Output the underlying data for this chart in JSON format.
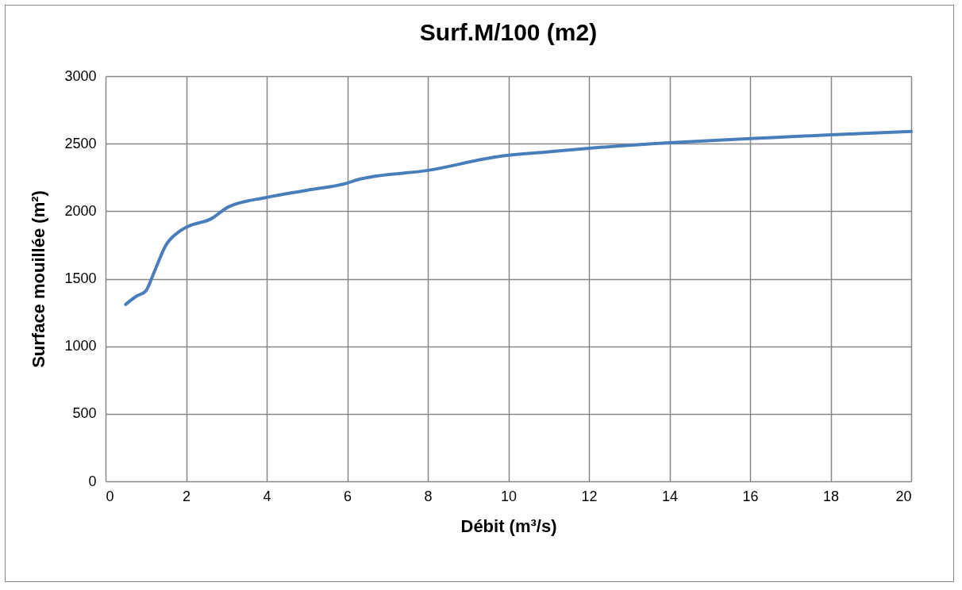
{
  "chart_data": {
    "type": "line",
    "title": "Surf.M/100 (m2)",
    "xlabel": "Débit (m³/s)",
    "ylabel": "Surface mouillée (m²)",
    "series": [
      {
        "color": "#4a7ebb",
        "x": [
          0.5,
          0.75,
          1.0,
          1.2,
          1.5,
          1.83,
          2.03,
          2.62,
          3.05,
          4,
          5,
          6,
          6.3,
          8,
          9.8,
          11,
          12,
          14,
          16,
          18,
          20
        ],
        "values": [
          1310,
          1368,
          1410,
          1544,
          1750,
          1850,
          1885,
          1944,
          2032,
          2102,
          2155,
          2208,
          2237,
          2302,
          2407,
          2440,
          2466,
          2507,
          2537,
          2566,
          2590
        ]
      }
    ],
    "xlim": [
      0,
      20
    ],
    "xticks": [
      0,
      2,
      4,
      6,
      8,
      10,
      12,
      14,
      16,
      18,
      20
    ],
    "ylim": [
      0,
      3000
    ],
    "yticks": [
      0,
      500,
      1000,
      1500,
      2000,
      2500,
      3000
    ],
    "grid": true,
    "legend": false
  }
}
